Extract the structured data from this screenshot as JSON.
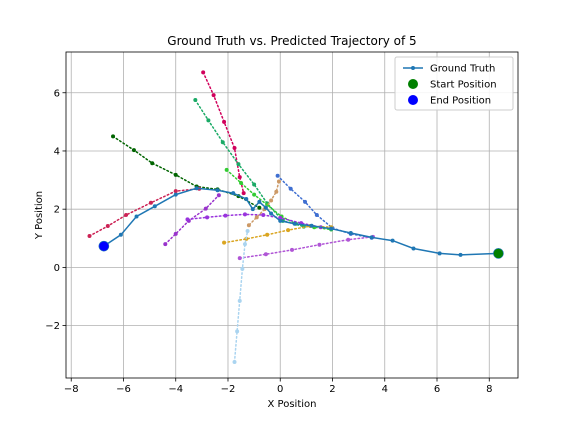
{
  "chart_data": {
    "type": "line",
    "title": "Ground Truth vs. Predicted Trajectory of 5",
    "xlabel": "X Position",
    "ylabel": "Y Position",
    "xlim": [
      -8.2,
      9.1
    ],
    "ylim": [
      -3.8,
      7.4
    ],
    "xticks": [
      -8,
      -6,
      -4,
      -2,
      0,
      2,
      4,
      6,
      8
    ],
    "yticks": [
      -2,
      0,
      2,
      4,
      6
    ],
    "grid": true,
    "legend": {
      "placement": "upper-right",
      "entries": [
        {
          "label": "Ground Truth",
          "kind": "line",
          "color": "#1f77b4"
        },
        {
          "label": "Start Position",
          "kind": "marker",
          "color": "#008000"
        },
        {
          "label": "End Position",
          "kind": "marker",
          "color": "#0000ff"
        }
      ]
    },
    "ground_truth": {
      "color": "#1f77b4",
      "points": [
        [
          8.35,
          0.48
        ],
        [
          6.9,
          0.43
        ],
        [
          6.1,
          0.48
        ],
        [
          5.1,
          0.65
        ],
        [
          4.3,
          0.92
        ],
        [
          3.5,
          1.03
        ],
        [
          2.7,
          1.18
        ],
        [
          1.95,
          1.33
        ],
        [
          1.2,
          1.43
        ],
        [
          0.55,
          1.5
        ],
        [
          0.0,
          1.6
        ],
        [
          -0.35,
          1.85
        ],
        [
          -0.55,
          2.05
        ],
        [
          -0.8,
          2.25
        ],
        [
          -1.05,
          2.0
        ],
        [
          -1.3,
          2.35
        ],
        [
          -1.8,
          2.55
        ],
        [
          -2.4,
          2.65
        ],
        [
          -3.2,
          2.72
        ],
        [
          -4.0,
          2.5
        ],
        [
          -4.8,
          2.1
        ],
        [
          -5.5,
          1.75
        ],
        [
          -6.1,
          1.12
        ],
        [
          -6.75,
          0.73
        ]
      ]
    },
    "start_position": {
      "x": 8.35,
      "y": 0.48,
      "color": "#008000"
    },
    "end_position": {
      "x": -6.75,
      "y": 0.73,
      "color": "#0000ff"
    },
    "predictions": [
      {
        "color": "#006400",
        "points": [
          [
            -6.4,
            4.5
          ],
          [
            -5.6,
            4.03
          ],
          [
            -4.9,
            3.58
          ],
          [
            -4.0,
            3.18
          ],
          [
            -3.2,
            2.78
          ],
          [
            -2.4,
            2.68
          ],
          [
            -1.6,
            2.45
          ],
          [
            -0.8,
            2.05
          ]
        ]
      },
      {
        "color": "#d1005b",
        "points": [
          [
            -2.95,
            6.7
          ],
          [
            -2.55,
            5.92
          ],
          [
            -2.15,
            5.0
          ],
          [
            -1.75,
            4.1
          ],
          [
            -1.55,
            3.1
          ],
          [
            -1.4,
            2.55
          ]
        ]
      },
      {
        "color": "#1aaa66",
        "points": [
          [
            -3.25,
            5.75
          ],
          [
            -2.75,
            5.05
          ],
          [
            -2.2,
            4.3
          ],
          [
            -1.6,
            3.55
          ],
          [
            -1.0,
            2.85
          ],
          [
            -0.5,
            2.2
          ],
          [
            0.1,
            1.6
          ],
          [
            0.9,
            1.4
          ]
        ]
      },
      {
        "color": "#33cc33",
        "points": [
          [
            -2.05,
            3.35
          ],
          [
            -1.5,
            2.9
          ],
          [
            -1.0,
            2.5
          ],
          [
            -0.5,
            2.15
          ],
          [
            0.05,
            1.75
          ],
          [
            0.6,
            1.5
          ],
          [
            1.3,
            1.38
          ],
          [
            1.95,
            1.3
          ]
        ]
      },
      {
        "color": "#cc2255",
        "points": [
          [
            -7.3,
            1.08
          ],
          [
            -6.6,
            1.42
          ],
          [
            -5.9,
            1.8
          ],
          [
            -4.95,
            2.22
          ],
          [
            -4.0,
            2.62
          ],
          [
            -3.1,
            2.7
          ]
        ]
      },
      {
        "color": "#9933cc",
        "points": [
          [
            -4.4,
            0.8
          ],
          [
            -4.0,
            1.15
          ],
          [
            -3.5,
            1.6
          ],
          [
            -2.85,
            2.02
          ],
          [
            -2.35,
            2.48
          ]
        ]
      },
      {
        "color": "#9933dd",
        "points": [
          [
            -3.55,
            1.65
          ],
          [
            -2.8,
            1.72
          ],
          [
            -2.1,
            1.78
          ],
          [
            -1.35,
            1.82
          ],
          [
            -0.65,
            1.8
          ],
          [
            0.0,
            1.7
          ],
          [
            0.8,
            1.52
          ],
          [
            1.55,
            1.38
          ]
        ]
      },
      {
        "color": "#3f6fd1",
        "points": [
          [
            -0.1,
            3.15
          ],
          [
            0.4,
            2.7
          ],
          [
            0.95,
            2.25
          ],
          [
            1.4,
            1.8
          ],
          [
            2.0,
            1.35
          ],
          [
            2.7,
            1.15
          ],
          [
            3.5,
            1.02
          ]
        ]
      },
      {
        "color": "#daa520",
        "points": [
          [
            -2.15,
            0.85
          ],
          [
            -1.3,
            0.98
          ],
          [
            -0.5,
            1.12
          ],
          [
            0.3,
            1.28
          ],
          [
            1.15,
            1.42
          ],
          [
            1.95,
            1.38
          ]
        ]
      },
      {
        "color": "#cc9966",
        "points": [
          [
            -0.05,
            2.95
          ],
          [
            -0.15,
            2.6
          ],
          [
            -0.35,
            2.3
          ],
          [
            -0.6,
            2.0
          ],
          [
            -0.9,
            1.72
          ],
          [
            -1.2,
            1.45
          ]
        ]
      },
      {
        "color": "#b055d6",
        "points": [
          [
            -1.55,
            0.32
          ],
          [
            -0.55,
            0.45
          ],
          [
            0.45,
            0.6
          ],
          [
            1.5,
            0.78
          ],
          [
            2.6,
            0.95
          ],
          [
            3.55,
            1.05
          ]
        ]
      },
      {
        "color": "#aad4f0",
        "points": [
          [
            -1.75,
            -3.25
          ],
          [
            -1.65,
            -2.2
          ],
          [
            -1.55,
            -1.15
          ],
          [
            -1.45,
            -0.05
          ],
          [
            -1.35,
            0.8
          ],
          [
            -1.25,
            1.25
          ]
        ]
      }
    ]
  }
}
